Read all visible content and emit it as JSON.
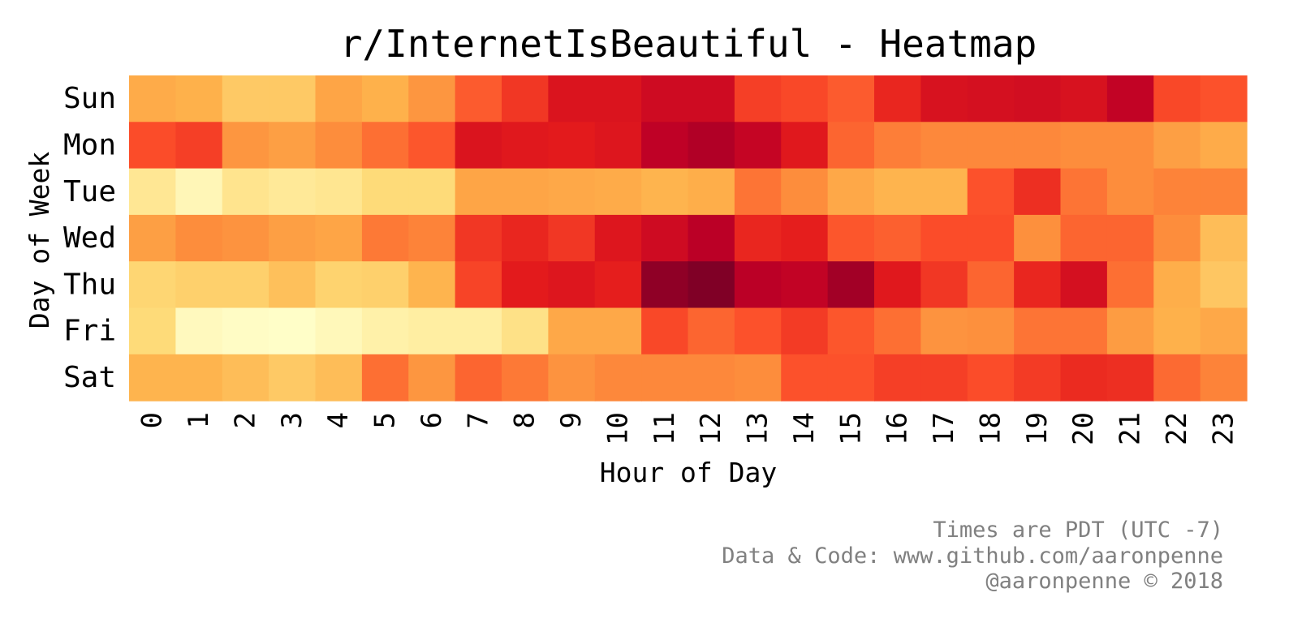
{
  "chart_data": {
    "type": "heatmap",
    "title": "r/InternetIsBeautiful - Heatmap",
    "xlabel": "Hour of Day",
    "ylabel": "Day of Week",
    "x_categories": [
      "0",
      "1",
      "2",
      "3",
      "4",
      "5",
      "6",
      "7",
      "8",
      "9",
      "10",
      "11",
      "12",
      "13",
      "14",
      "15",
      "16",
      "17",
      "18",
      "19",
      "20",
      "21",
      "22",
      "23"
    ],
    "y_categories": [
      "Sun",
      "Mon",
      "Tue",
      "Wed",
      "Thu",
      "Fri",
      "Sat"
    ],
    "colormap": "YlOrRd",
    "colormap_stops": [
      "#ffffcc",
      "#ffeda0",
      "#fed976",
      "#feb24c",
      "#fd8d3c",
      "#fc4e2a",
      "#e31a1c",
      "#bd0026",
      "#800026"
    ],
    "value_scale": "relative intensity 0-1 (no colorbar shown)",
    "grid": false,
    "values": [
      [
        0.4,
        0.38,
        0.3,
        0.3,
        0.42,
        0.38,
        0.47,
        0.6,
        0.68,
        0.78,
        0.78,
        0.82,
        0.82,
        0.66,
        0.64,
        0.6,
        0.72,
        0.79,
        0.8,
        0.81,
        0.79,
        0.86,
        0.64,
        0.62
      ],
      [
        0.63,
        0.66,
        0.47,
        0.44,
        0.5,
        0.56,
        0.61,
        0.78,
        0.76,
        0.75,
        0.77,
        0.87,
        0.9,
        0.85,
        0.76,
        0.58,
        0.53,
        0.51,
        0.51,
        0.51,
        0.5,
        0.5,
        0.44,
        0.4
      ],
      [
        0.16,
        0.06,
        0.18,
        0.15,
        0.17,
        0.24,
        0.24,
        0.42,
        0.42,
        0.41,
        0.4,
        0.37,
        0.39,
        0.55,
        0.5,
        0.41,
        0.37,
        0.37,
        0.62,
        0.7,
        0.55,
        0.5,
        0.52,
        0.52
      ],
      [
        0.44,
        0.5,
        0.48,
        0.44,
        0.42,
        0.54,
        0.52,
        0.68,
        0.72,
        0.68,
        0.77,
        0.82,
        0.88,
        0.72,
        0.74,
        0.61,
        0.59,
        0.63,
        0.63,
        0.49,
        0.58,
        0.58,
        0.5,
        0.34
      ],
      [
        0.26,
        0.28,
        0.28,
        0.33,
        0.27,
        0.28,
        0.37,
        0.65,
        0.75,
        0.77,
        0.74,
        0.97,
        1.0,
        0.88,
        0.86,
        0.93,
        0.76,
        0.68,
        0.58,
        0.72,
        0.8,
        0.56,
        0.39,
        0.31
      ],
      [
        0.24,
        0.04,
        0.02,
        0.01,
        0.05,
        0.1,
        0.12,
        0.12,
        0.2,
        0.41,
        0.41,
        0.64,
        0.58,
        0.62,
        0.67,
        0.61,
        0.56,
        0.48,
        0.49,
        0.55,
        0.55,
        0.45,
        0.38,
        0.41
      ],
      [
        0.37,
        0.37,
        0.34,
        0.3,
        0.34,
        0.56,
        0.47,
        0.58,
        0.54,
        0.48,
        0.51,
        0.51,
        0.51,
        0.5,
        0.62,
        0.62,
        0.66,
        0.66,
        0.63,
        0.67,
        0.71,
        0.7,
        0.57,
        0.52
      ]
    ]
  },
  "footer": {
    "line1": "Times are PDT (UTC -7)",
    "line2": "Data & Code: www.github.com/aaronpenne",
    "line3": "@aaronpenne © 2018"
  }
}
